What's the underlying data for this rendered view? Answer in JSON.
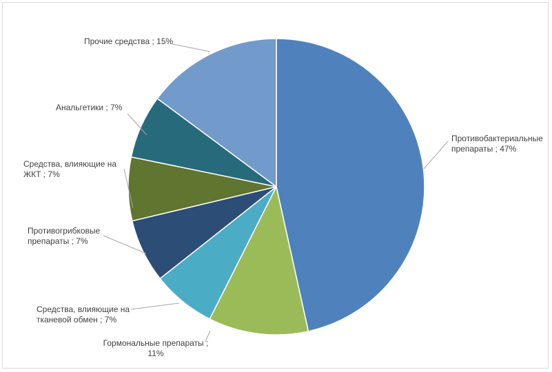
{
  "chart_data": {
    "type": "pie",
    "title": "",
    "series": [
      {
        "slices": [
          {
            "label": "Противобактериальные препараты",
            "value": 47,
            "text": [
              "Противобактериальные",
              "препараты ; 47%"
            ],
            "color": "#4f81bd"
          },
          {
            "label": "Гормональные препараты",
            "value": 11,
            "text": [
              "Гормональные препараты ;",
              "11%"
            ],
            "color": "#9bbb59"
          },
          {
            "label": "Средства, влияющие на тканевой обмен",
            "value": 7,
            "text": [
              "Средства, влияющие на",
              "тканевой обмен ; 7%"
            ],
            "color": "#4bacc6"
          },
          {
            "label": "Противогрибковые препараты",
            "value": 7,
            "text": [
              "Противогрибковые",
              "препараты ; 7%"
            ],
            "color": "#2c4d75"
          },
          {
            "label": "Средства, влияющие на ЖКТ",
            "value": 7,
            "text": [
              "Средства, влияющие на",
              "ЖКТ ; 7%"
            ],
            "color": "#5f7530"
          },
          {
            "label": "Анальгетики",
            "value": 7,
            "text": [
              "Анальгетики ; 7%"
            ],
            "color": "#276a7c"
          },
          {
            "label": "Прочие средства",
            "value": 15,
            "text": [
              "Прочие средства ; 15%"
            ],
            "color": "#729aca"
          }
        ]
      }
    ],
    "legend": "none",
    "data_labels": "outside-with-leader-lines"
  }
}
